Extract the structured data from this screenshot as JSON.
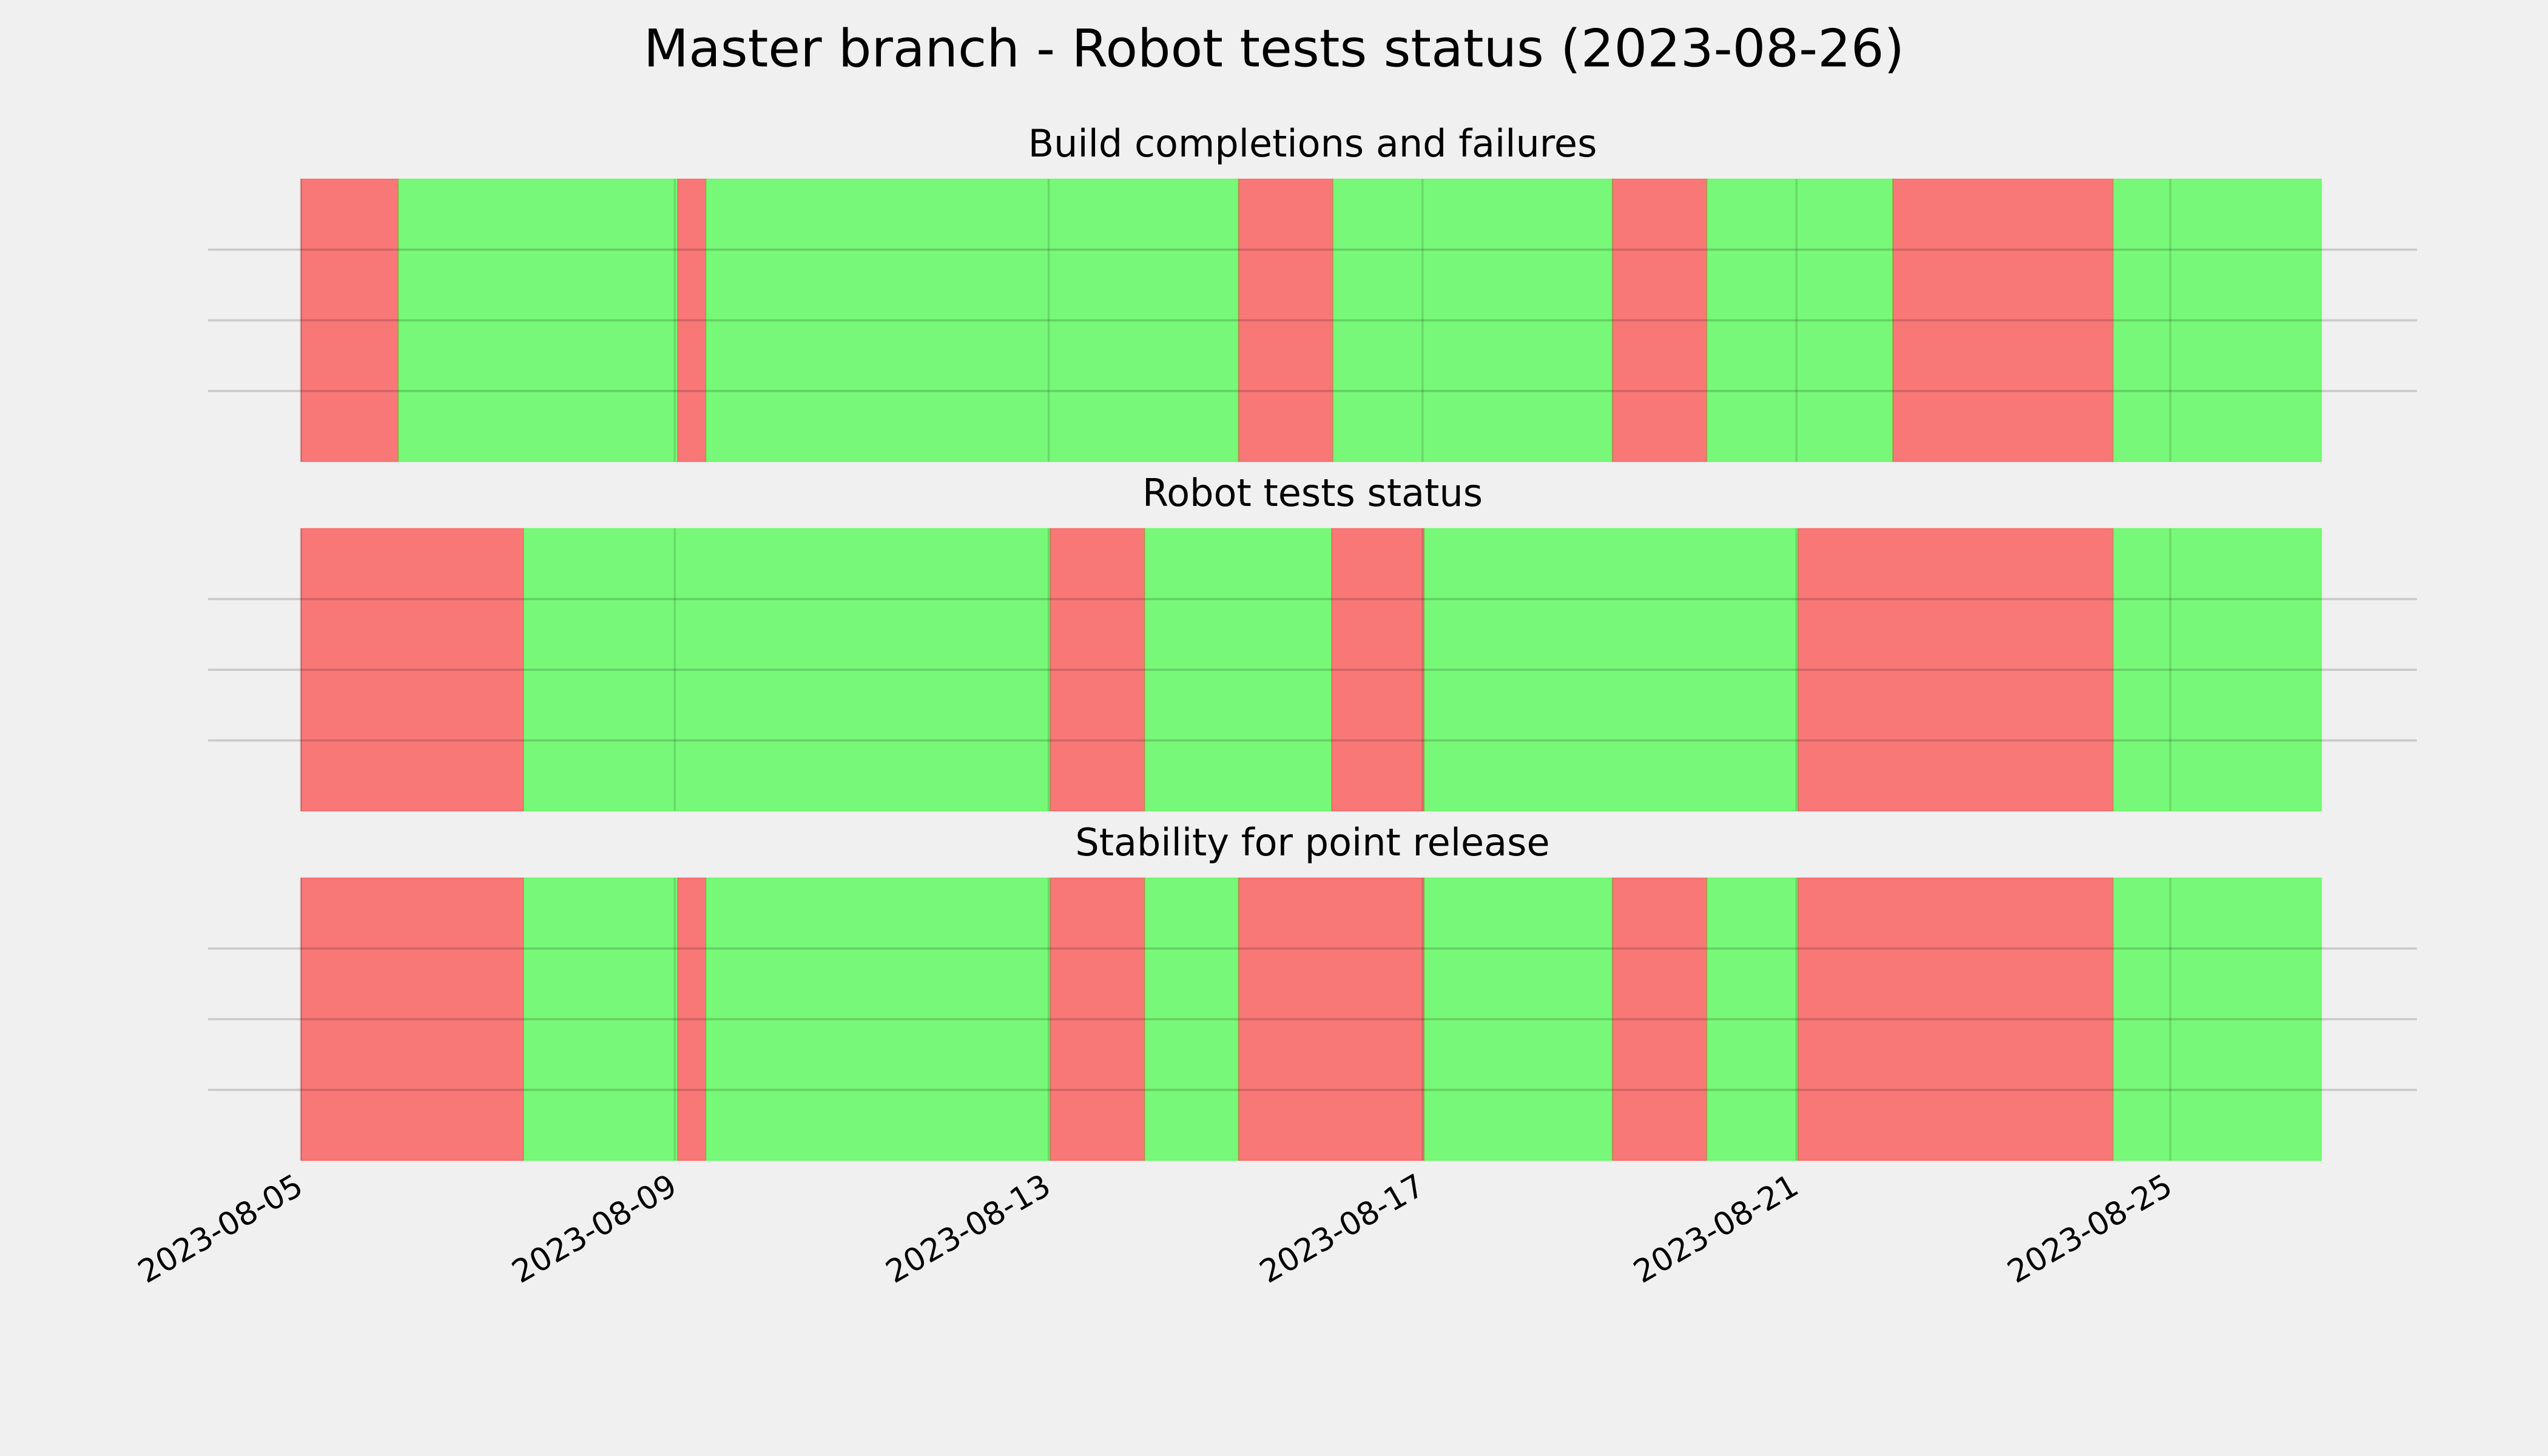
{
  "chart_data": {
    "type": "timeline",
    "title": "Master branch - Robot tests status (2023-08-26)",
    "xlim": [
      "2023-08-04T00:10",
      "2023-08-27T15:20"
    ],
    "xticks": [
      "2023-08-05",
      "2023-08-09",
      "2023-08-13",
      "2023-08-17",
      "2023-08-21",
      "2023-08-25"
    ],
    "ylim": [
      0,
      1
    ],
    "yticks": [
      0.25,
      0.5,
      0.75
    ],
    "grid": true,
    "opacity": 0.5,
    "panels": [
      {
        "title": "Build completions and failures",
        "spans": [
          {
            "start": "2023-08-05T00:00",
            "end": "2023-08-06T01:00",
            "color": "red"
          },
          {
            "start": "2023-08-06T01:00",
            "end": "2023-08-09T00:45",
            "color": "lime"
          },
          {
            "start": "2023-08-09T00:45",
            "end": "2023-08-09T08:00",
            "color": "red"
          },
          {
            "start": "2023-08-09T08:00",
            "end": "2023-08-15T00:45",
            "color": "lime"
          },
          {
            "start": "2023-08-15T00:45",
            "end": "2023-08-16T01:00",
            "color": "red"
          },
          {
            "start": "2023-08-16T01:00",
            "end": "2023-08-19T00:45",
            "color": "lime"
          },
          {
            "start": "2023-08-19T00:45",
            "end": "2023-08-20T01:00",
            "color": "red"
          },
          {
            "start": "2023-08-20T01:00",
            "end": "2023-08-22T00:45",
            "color": "lime"
          },
          {
            "start": "2023-08-22T00:45",
            "end": "2023-08-24T09:20",
            "color": "red"
          },
          {
            "start": "2023-08-24T09:20",
            "end": "2023-08-26T14:50",
            "color": "lime"
          }
        ]
      },
      {
        "title": "Robot tests status",
        "spans": [
          {
            "start": "2023-08-05T00:00",
            "end": "2023-08-07T09:10",
            "color": "red"
          },
          {
            "start": "2023-08-07T09:10",
            "end": "2023-08-13T00:25",
            "color": "lime"
          },
          {
            "start": "2023-08-13T00:25",
            "end": "2023-08-14T00:40",
            "color": "red"
          },
          {
            "start": "2023-08-14T00:40",
            "end": "2023-08-16T00:40",
            "color": "lime"
          },
          {
            "start": "2023-08-16T00:40",
            "end": "2023-08-17T00:25",
            "color": "red"
          },
          {
            "start": "2023-08-17T00:25",
            "end": "2023-08-21T00:25",
            "color": "lime"
          },
          {
            "start": "2023-08-21T00:25",
            "end": "2023-08-24T09:20",
            "color": "red"
          },
          {
            "start": "2023-08-24T09:20",
            "end": "2023-08-26T14:50",
            "color": "lime"
          }
        ]
      },
      {
        "title": "Stability for point release",
        "spans": [
          {
            "start": "2023-08-05T00:00",
            "end": "2023-08-07T09:10",
            "color": "red"
          },
          {
            "start": "2023-08-07T09:10",
            "end": "2023-08-09T00:45",
            "color": "lime"
          },
          {
            "start": "2023-08-09T00:45",
            "end": "2023-08-09T08:00",
            "color": "red"
          },
          {
            "start": "2023-08-09T08:00",
            "end": "2023-08-13T00:25",
            "color": "lime"
          },
          {
            "start": "2023-08-13T00:25",
            "end": "2023-08-14T00:40",
            "color": "red"
          },
          {
            "start": "2023-08-14T00:40",
            "end": "2023-08-15T00:45",
            "color": "lime"
          },
          {
            "start": "2023-08-15T00:45",
            "end": "2023-08-17T00:25",
            "color": "red"
          },
          {
            "start": "2023-08-17T00:25",
            "end": "2023-08-19T00:45",
            "color": "lime"
          },
          {
            "start": "2023-08-19T00:45",
            "end": "2023-08-20T01:00",
            "color": "red"
          },
          {
            "start": "2023-08-20T01:00",
            "end": "2023-08-21T00:25",
            "color": "lime"
          },
          {
            "start": "2023-08-21T00:25",
            "end": "2023-08-24T09:20",
            "color": "red"
          },
          {
            "start": "2023-08-24T09:20",
            "end": "2023-08-26T14:50",
            "color": "lime"
          }
        ]
      }
    ]
  }
}
